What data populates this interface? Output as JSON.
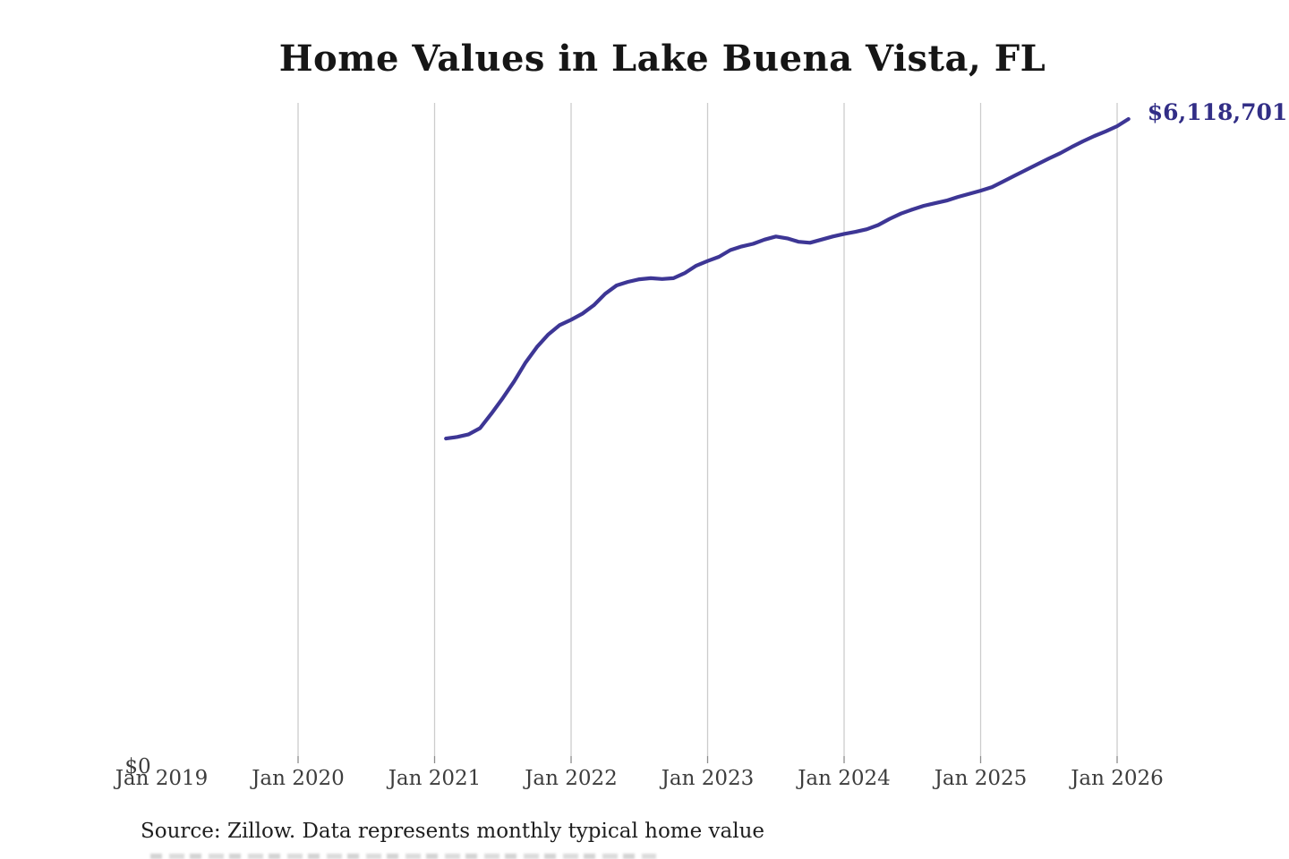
{
  "page": {
    "background": "#ffffff"
  },
  "chart": {
    "title": "Home Values in Lake Buena Vista, FL",
    "source_note": "Source: Zillow. Data represents monthly typical home value",
    "y_zero_label": "$0",
    "end_value_label": "$6,118,701",
    "line_color": "#3d3695",
    "end_label_color": "#322e86",
    "gridline_color": "#cccccc",
    "tick_color": "#8c8c8c",
    "axis_text_color": "#3d3d3d"
  },
  "chart_data": {
    "type": "line",
    "title": "Home Values in Lake Buena Vista, FL",
    "xlabel": "",
    "ylabel": "",
    "grid": "vertical-only",
    "legend": "none",
    "ylim": [
      0,
      6280000
    ],
    "x_tick_labels": [
      "Jan 2019",
      "Jan 2020",
      "Jan 2021",
      "Jan 2022",
      "Jan 2023",
      "Jan 2024",
      "Jan 2025",
      "Jan 2026"
    ],
    "y_tick_labels": [
      "$0"
    ],
    "end_annotation": "$6,118,701",
    "x": [
      "2021-02",
      "2021-03",
      "2021-04",
      "2021-05",
      "2021-06",
      "2021-07",
      "2021-08",
      "2021-09",
      "2021-10",
      "2021-11",
      "2021-12",
      "2022-01",
      "2022-02",
      "2022-03",
      "2022-04",
      "2022-05",
      "2022-06",
      "2022-07",
      "2022-08",
      "2022-09",
      "2022-10",
      "2022-11",
      "2022-12",
      "2023-01",
      "2023-02",
      "2023-03",
      "2023-04",
      "2023-05",
      "2023-06",
      "2023-07",
      "2023-08",
      "2023-09",
      "2023-10",
      "2023-11",
      "2023-12",
      "2024-01",
      "2024-02",
      "2024-03",
      "2024-04",
      "2024-05",
      "2024-06",
      "2024-07",
      "2024-08",
      "2024-09",
      "2024-10",
      "2024-11",
      "2024-12",
      "2025-01",
      "2025-02",
      "2025-03",
      "2025-04",
      "2025-05",
      "2025-06",
      "2025-07",
      "2025-08",
      "2025-09",
      "2025-10",
      "2025-11",
      "2025-12",
      "2026-01",
      "2026-02"
    ],
    "values": [
      3050000,
      3065000,
      3090000,
      3150000,
      3290000,
      3440000,
      3600000,
      3780000,
      3930000,
      4050000,
      4140000,
      4190000,
      4250000,
      4330000,
      4440000,
      4520000,
      4555000,
      4580000,
      4590000,
      4582000,
      4590000,
      4640000,
      4710000,
      4755000,
      4795000,
      4860000,
      4895000,
      4920000,
      4960000,
      4990000,
      4972000,
      4940000,
      4930000,
      4960000,
      4990000,
      5015000,
      5035000,
      5060000,
      5100000,
      5160000,
      5210000,
      5250000,
      5285000,
      5310000,
      5335000,
      5370000,
      5400000,
      5430000,
      5465000,
      5520000,
      5575000,
      5630000,
      5685000,
      5740000,
      5790000,
      5850000,
      5905000,
      5955000,
      6000000,
      6050000,
      6118701
    ]
  }
}
